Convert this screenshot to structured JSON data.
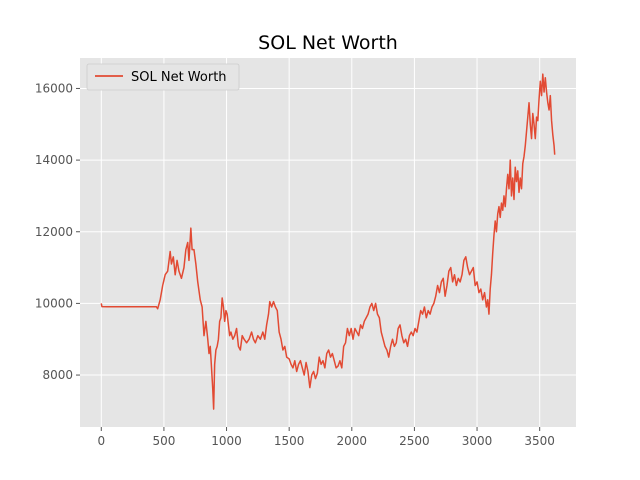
{
  "chart_data": {
    "type": "line",
    "title": "SOL Net Worth",
    "xlabel": "",
    "ylabel": "",
    "xlim": [
      -170,
      3790
    ],
    "ylim": [
      6550,
      16850
    ],
    "xticks": [
      0,
      500,
      1000,
      1500,
      2000,
      2500,
      3000,
      3500
    ],
    "yticks": [
      8000,
      10000,
      12000,
      14000,
      16000
    ],
    "x_tick_labels": [
      "0",
      "500",
      "1000",
      "1500",
      "2000",
      "2500",
      "3000",
      "3500"
    ],
    "y_tick_labels": [
      "8000",
      "10000",
      "12000",
      "14000",
      "16000"
    ],
    "grid": true,
    "legend": "top-left",
    "colors": {
      "background": "#e5e5e5",
      "grid": "#ffffff",
      "line": "#e24a33"
    },
    "series": [
      {
        "name": "SOL Net Worth",
        "color": "#e24a33",
        "points": [
          [
            0,
            10000
          ],
          [
            5,
            9910
          ],
          [
            50,
            9905
          ],
          [
            150,
            9905
          ],
          [
            250,
            9905
          ],
          [
            350,
            9905
          ],
          [
            440,
            9905
          ],
          [
            450,
            9850
          ],
          [
            470,
            10100
          ],
          [
            490,
            10500
          ],
          [
            510,
            10800
          ],
          [
            530,
            10900
          ],
          [
            550,
            11450
          ],
          [
            560,
            11100
          ],
          [
            575,
            11300
          ],
          [
            590,
            10800
          ],
          [
            605,
            11200
          ],
          [
            620,
            10900
          ],
          [
            640,
            10700
          ],
          [
            660,
            11000
          ],
          [
            675,
            11500
          ],
          [
            690,
            11700
          ],
          [
            700,
            11200
          ],
          [
            715,
            12100
          ],
          [
            725,
            11500
          ],
          [
            740,
            11500
          ],
          [
            755,
            11100
          ],
          [
            770,
            10600
          ],
          [
            790,
            10100
          ],
          [
            805,
            9900
          ],
          [
            820,
            9100
          ],
          [
            835,
            9500
          ],
          [
            850,
            9000
          ],
          [
            860,
            8600
          ],
          [
            870,
            8800
          ],
          [
            880,
            8200
          ],
          [
            890,
            7600
          ],
          [
            897,
            7050
          ],
          [
            905,
            8300
          ],
          [
            915,
            8700
          ],
          [
            925,
            8800
          ],
          [
            935,
            9000
          ],
          [
            945,
            9500
          ],
          [
            955,
            9600
          ],
          [
            965,
            10150
          ],
          [
            975,
            9900
          ],
          [
            985,
            9500
          ],
          [
            995,
            9800
          ],
          [
            1005,
            9700
          ],
          [
            1015,
            9400
          ],
          [
            1025,
            9100
          ],
          [
            1035,
            9200
          ],
          [
            1050,
            9000
          ],
          [
            1065,
            9100
          ],
          [
            1080,
            9300
          ],
          [
            1095,
            8800
          ],
          [
            1110,
            8700
          ],
          [
            1125,
            9100
          ],
          [
            1140,
            9000
          ],
          [
            1160,
            8900
          ],
          [
            1180,
            9000
          ],
          [
            1200,
            9200
          ],
          [
            1215,
            9000
          ],
          [
            1230,
            8900
          ],
          [
            1250,
            9100
          ],
          [
            1270,
            9000
          ],
          [
            1290,
            9200
          ],
          [
            1305,
            9000
          ],
          [
            1320,
            9400
          ],
          [
            1335,
            9700
          ],
          [
            1345,
            10050
          ],
          [
            1360,
            9900
          ],
          [
            1375,
            10050
          ],
          [
            1390,
            9900
          ],
          [
            1405,
            9800
          ],
          [
            1420,
            9200
          ],
          [
            1435,
            9000
          ],
          [
            1450,
            8700
          ],
          [
            1465,
            8800
          ],
          [
            1480,
            8500
          ],
          [
            1500,
            8450
          ],
          [
            1515,
            8300
          ],
          [
            1530,
            8200
          ],
          [
            1545,
            8400
          ],
          [
            1560,
            8100
          ],
          [
            1575,
            8300
          ],
          [
            1590,
            8400
          ],
          [
            1605,
            8200
          ],
          [
            1620,
            8000
          ],
          [
            1635,
            8350
          ],
          [
            1650,
            8100
          ],
          [
            1665,
            7650
          ],
          [
            1680,
            8000
          ],
          [
            1695,
            8100
          ],
          [
            1710,
            7900
          ],
          [
            1725,
            8050
          ],
          [
            1740,
            8500
          ],
          [
            1755,
            8300
          ],
          [
            1770,
            8400
          ],
          [
            1785,
            8200
          ],
          [
            1800,
            8600
          ],
          [
            1815,
            8700
          ],
          [
            1830,
            8500
          ],
          [
            1845,
            8600
          ],
          [
            1860,
            8400
          ],
          [
            1875,
            8200
          ],
          [
            1890,
            8250
          ],
          [
            1905,
            8400
          ],
          [
            1920,
            8200
          ],
          [
            1935,
            8800
          ],
          [
            1950,
            8900
          ],
          [
            1965,
            9300
          ],
          [
            1980,
            9100
          ],
          [
            1995,
            9300
          ],
          [
            2010,
            9000
          ],
          [
            2025,
            9300
          ],
          [
            2040,
            9200
          ],
          [
            2055,
            9100
          ],
          [
            2070,
            9400
          ],
          [
            2085,
            9300
          ],
          [
            2100,
            9500
          ],
          [
            2115,
            9600
          ],
          [
            2130,
            9700
          ],
          [
            2145,
            9900
          ],
          [
            2160,
            10000
          ],
          [
            2175,
            9800
          ],
          [
            2190,
            10000
          ],
          [
            2205,
            9700
          ],
          [
            2220,
            9600
          ],
          [
            2235,
            9200
          ],
          [
            2250,
            9000
          ],
          [
            2265,
            8800
          ],
          [
            2280,
            8700
          ],
          [
            2295,
            8500
          ],
          [
            2310,
            8800
          ],
          [
            2325,
            9000
          ],
          [
            2340,
            8800
          ],
          [
            2355,
            8900
          ],
          [
            2370,
            9300
          ],
          [
            2385,
            9400
          ],
          [
            2400,
            9100
          ],
          [
            2415,
            8900
          ],
          [
            2430,
            9000
          ],
          [
            2445,
            8800
          ],
          [
            2460,
            9100
          ],
          [
            2475,
            9200
          ],
          [
            2490,
            9100
          ],
          [
            2505,
            9300
          ],
          [
            2520,
            9200
          ],
          [
            2535,
            9500
          ],
          [
            2550,
            9800
          ],
          [
            2565,
            9700
          ],
          [
            2580,
            9900
          ],
          [
            2595,
            9600
          ],
          [
            2610,
            9800
          ],
          [
            2625,
            9700
          ],
          [
            2640,
            9900
          ],
          [
            2655,
            10000
          ],
          [
            2670,
            10200
          ],
          [
            2685,
            10500
          ],
          [
            2700,
            10300
          ],
          [
            2715,
            10600
          ],
          [
            2730,
            10700
          ],
          [
            2745,
            10200
          ],
          [
            2760,
            10500
          ],
          [
            2775,
            10900
          ],
          [
            2790,
            11000
          ],
          [
            2805,
            10600
          ],
          [
            2820,
            10800
          ],
          [
            2835,
            10500
          ],
          [
            2850,
            10700
          ],
          [
            2865,
            10600
          ],
          [
            2880,
            10800
          ],
          [
            2895,
            11200
          ],
          [
            2910,
            11300
          ],
          [
            2925,
            11000
          ],
          [
            2940,
            10800
          ],
          [
            2955,
            10900
          ],
          [
            2970,
            11000
          ],
          [
            2985,
            10500
          ],
          [
            3000,
            10600
          ],
          [
            3015,
            10300
          ],
          [
            3030,
            10400
          ],
          [
            3045,
            10100
          ],
          [
            3060,
            10300
          ],
          [
            3075,
            9900
          ],
          [
            3085,
            10100
          ],
          [
            3095,
            9700
          ],
          [
            3105,
            10400
          ],
          [
            3115,
            10800
          ],
          [
            3125,
            11400
          ],
          [
            3135,
            11900
          ],
          [
            3145,
            12300
          ],
          [
            3155,
            12000
          ],
          [
            3165,
            12500
          ],
          [
            3175,
            12700
          ],
          [
            3185,
            12400
          ],
          [
            3195,
            12800
          ],
          [
            3205,
            12600
          ],
          [
            3215,
            13000
          ],
          [
            3225,
            12700
          ],
          [
            3235,
            13200
          ],
          [
            3245,
            13600
          ],
          [
            3255,
            13200
          ],
          [
            3265,
            14000
          ],
          [
            3275,
            13000
          ],
          [
            3285,
            13500
          ],
          [
            3295,
            12900
          ],
          [
            3305,
            13800
          ],
          [
            3315,
            13400
          ],
          [
            3325,
            13700
          ],
          [
            3335,
            13100
          ],
          [
            3345,
            13500
          ],
          [
            3355,
            13200
          ],
          [
            3365,
            13900
          ],
          [
            3375,
            14100
          ],
          [
            3385,
            14400
          ],
          [
            3395,
            14800
          ],
          [
            3405,
            15200
          ],
          [
            3415,
            15600
          ],
          [
            3425,
            15000
          ],
          [
            3435,
            14600
          ],
          [
            3445,
            15300
          ],
          [
            3455,
            15000
          ],
          [
            3465,
            14600
          ],
          [
            3475,
            15200
          ],
          [
            3485,
            15100
          ],
          [
            3495,
            15700
          ],
          [
            3505,
            16200
          ],
          [
            3515,
            15800
          ],
          [
            3525,
            16400
          ],
          [
            3535,
            15900
          ],
          [
            3545,
            16300
          ],
          [
            3555,
            15900
          ],
          [
            3565,
            15600
          ],
          [
            3575,
            15400
          ],
          [
            3585,
            15800
          ],
          [
            3595,
            15100
          ],
          [
            3605,
            14700
          ],
          [
            3615,
            14400
          ],
          [
            3620,
            14150
          ]
        ]
      }
    ]
  }
}
